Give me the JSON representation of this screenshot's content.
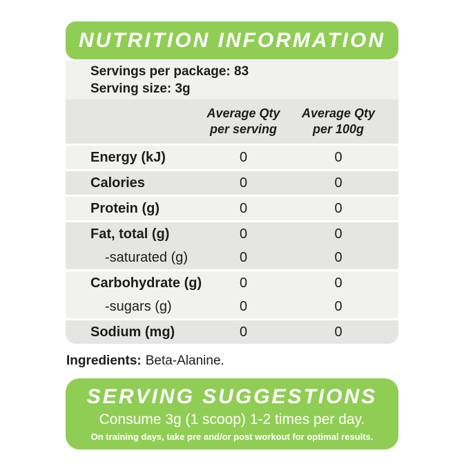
{
  "colors": {
    "green": "#90cd55",
    "band_light": "#f1f1ef",
    "band_dark": "#e5e6e3",
    "text": "#1c1c1a",
    "white": "#ffffff"
  },
  "header": {
    "title": "NUTRITION INFORMATION"
  },
  "serving_info": {
    "servings_per_package": "Servings per package: 83",
    "serving_size": "Serving size: 3g"
  },
  "table": {
    "columns": [
      {
        "line1": "Average Qty",
        "line2": "per serving"
      },
      {
        "line1": "Average Qty",
        "line2": "per 100g"
      }
    ],
    "bands": [
      {
        "rows": [
          {
            "label": "Energy (kJ)",
            "per_serving": "0",
            "per_100g": "0"
          }
        ]
      },
      {
        "rows": [
          {
            "label": "Calories",
            "per_serving": "0",
            "per_100g": "0"
          }
        ]
      },
      {
        "rows": [
          {
            "label": "Protein (g)",
            "per_serving": "0",
            "per_100g": "0"
          }
        ]
      },
      {
        "rows": [
          {
            "label": "Fat, total (g)",
            "per_serving": "0",
            "per_100g": "0"
          },
          {
            "label": "-saturated (g)",
            "sub": true,
            "per_serving": "0",
            "per_100g": "0"
          }
        ]
      },
      {
        "rows": [
          {
            "label": "Carbohydrate (g)",
            "per_serving": "0",
            "per_100g": "0"
          },
          {
            "label": "-sugars (g)",
            "sub": true,
            "per_serving": "0",
            "per_100g": "0"
          }
        ]
      },
      {
        "rows": [
          {
            "label": "Sodium (mg)",
            "per_serving": "0",
            "per_100g": "0"
          }
        ]
      }
    ]
  },
  "ingredients": {
    "label": "Ingredients:",
    "value": "Beta-Alanine."
  },
  "footer": {
    "title": "SERVING SUGGESTIONS",
    "directions": "Consume 3g (1 scoop) 1-2 times per day.",
    "note": "On training days, take pre and/or post workout for optimal results."
  }
}
